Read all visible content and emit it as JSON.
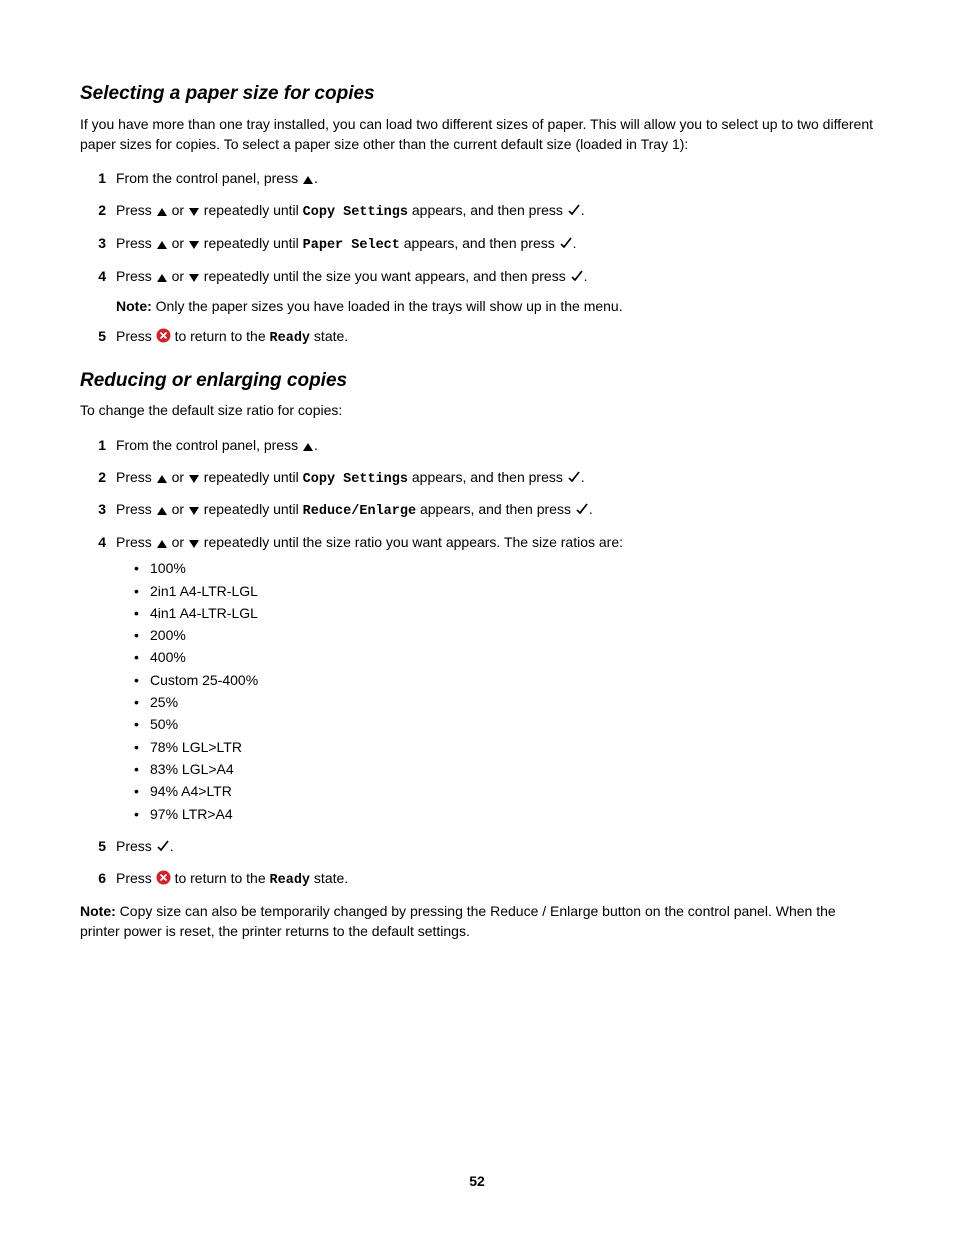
{
  "icons": {
    "up": "▲",
    "down": "▼",
    "check": "✓"
  },
  "section1": {
    "heading": "Selecting a paper size for copies",
    "intro": "If you have more than one tray installed, you can load two different sizes of paper. This will allow you to select up to two different paper sizes for copies. To select a paper size other than the current default size (loaded in Tray 1):",
    "steps": {
      "s1a": "From the control panel, press ",
      "s1b": ".",
      "s2a": "Press ",
      "s2b": " or ",
      "s2c": " repeatedly until ",
      "s2d": "Copy Settings",
      "s2e": " appears, and then press ",
      "s2f": ".",
      "s3a": "Press ",
      "s3b": " or ",
      "s3c": " repeatedly until ",
      "s3d": "Paper Select",
      "s3e": " appears, and then press ",
      "s3f": ".",
      "s4a": "Press ",
      "s4b": " or ",
      "s4c": " repeatedly until the size you want appears, and then press ",
      "s4d": ".",
      "s4note_label": "Note:",
      "s4note_text": " Only the paper sizes you have loaded in the trays will show up in the menu.",
      "s5a": "Press ",
      "s5b": " to return to the ",
      "s5c": "Ready",
      "s5d": " state."
    }
  },
  "section2": {
    "heading": "Reducing or enlarging copies",
    "intro": "To change the default size ratio for copies:",
    "steps": {
      "s1a": "From the control panel, press ",
      "s1b": ".",
      "s2a": "Press ",
      "s2b": " or ",
      "s2c": " repeatedly until ",
      "s2d": "Copy Settings",
      "s2e": " appears, and then press ",
      "s2f": ".",
      "s3a": "Press ",
      "s3b": " or ",
      "s3c": " repeatedly until ",
      "s3d": "Reduce/Enlarge",
      "s3e": " appears, and then press ",
      "s3f": ".",
      "s4a": "Press ",
      "s4b": " or ",
      "s4c": " repeatedly until the size ratio you want appears. The size ratios are:",
      "bullets": [
        "100%",
        "2in1 A4-LTR-LGL",
        "4in1 A4-LTR-LGL",
        "200%",
        "400%",
        "Custom 25-400%",
        "25%",
        "50%",
        "78% LGL>LTR",
        "83% LGL>A4",
        "94% A4>LTR",
        "97% LTR>A4"
      ],
      "s5a": "Press ",
      "s5b": ".",
      "s6a": "Press ",
      "s6b": " to return to the ",
      "s6c": "Ready",
      "s6d": " state."
    },
    "footer_note_label": "Note:",
    "footer_note_text": " Copy size can also be temporarily changed by pressing the Reduce / Enlarge button on the control panel. When the printer power is reset, the printer returns to the default settings."
  },
  "page_number": "52"
}
